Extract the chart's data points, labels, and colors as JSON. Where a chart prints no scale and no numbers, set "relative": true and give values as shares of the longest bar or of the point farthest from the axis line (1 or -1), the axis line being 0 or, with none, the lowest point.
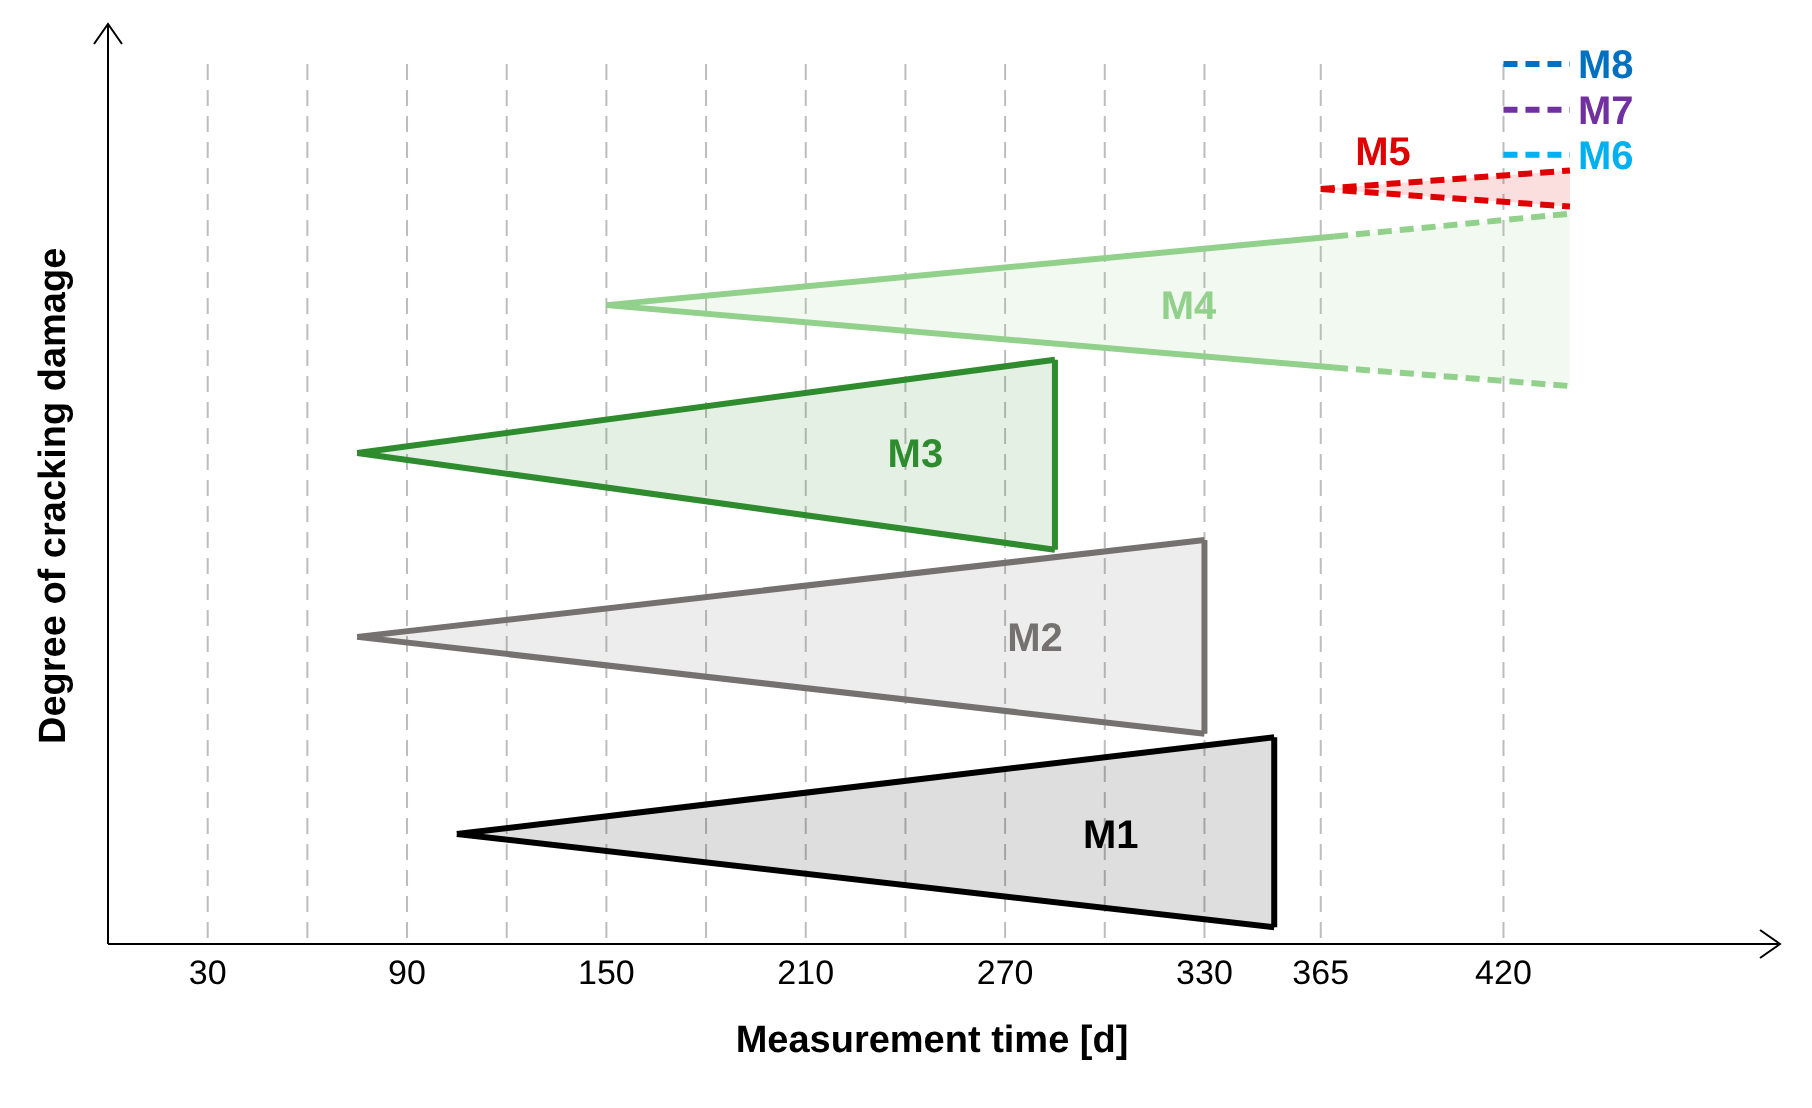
{
  "chart_data": {
    "type": "line",
    "relative": true,
    "xlabel": "Measurement time [d]",
    "ylabel": "Degree of cracking damage",
    "xlim": [
      0,
      496
    ],
    "xticks": [
      30,
      {
        "value": 60,
        "label": null
      },
      90,
      {
        "value": 120,
        "label": null
      },
      150,
      {
        "value": 180,
        "label": null
      },
      210,
      {
        "value": 240,
        "label": null
      },
      270,
      {
        "value": 300,
        "label": null
      },
      330,
      365,
      420
    ],
    "grid": "x",
    "legend": false,
    "series": [
      {
        "name": "M1",
        "color": "#000000",
        "line_style": "solid",
        "x": [
          105,
          351
        ],
        "values": [
          0.125,
          0.235
        ],
        "lower": [
          0.125,
          0.019
        ],
        "upper": [
          0.125,
          0.235
        ]
      },
      {
        "color": "#000000",
        "line_style": "solid",
        "x": [
          105,
          351
        ],
        "values": [
          0.125,
          0.019
        ]
      },
      {
        "color": "#000000",
        "line_style": "solid",
        "x": [
          351,
          351
        ],
        "values": [
          0.235,
          0.019
        ]
      },
      {
        "name": "M2",
        "color": "#767171",
        "line_style": "solid",
        "x": [
          75,
          330
        ],
        "values": [
          0.349,
          0.459
        ],
        "lower": [
          0.349,
          0.239
        ],
        "upper": [
          0.349,
          0.459
        ]
      },
      {
        "color": "#767171",
        "line_style": "solid",
        "x": [
          75,
          330
        ],
        "values": [
          0.349,
          0.239
        ]
      },
      {
        "color": "#767171",
        "line_style": "solid",
        "x": [
          330,
          330
        ],
        "values": [
          0.459,
          0.239
        ]
      },
      {
        "name": "M3",
        "color": "#2e8b2e",
        "line_style": "solid",
        "x": [
          75,
          285
        ],
        "values": [
          0.558,
          0.664
        ],
        "lower": [
          0.558,
          0.448
        ],
        "upper": [
          0.558,
          0.664
        ]
      },
      {
        "color": "#2e8b2e",
        "line_style": "solid",
        "x": [
          75,
          285
        ],
        "values": [
          0.558,
          0.448
        ]
      },
      {
        "color": "#2e8b2e",
        "line_style": "solid",
        "x": [
          285,
          285
        ],
        "values": [
          0.664,
          0.448
        ]
      },
      {
        "name": "M4",
        "color": "#92d18b",
        "line_style": "solid",
        "x": [
          150,
          369
        ],
        "values": [
          0.726,
          0.804
        ],
        "lower": [
          0.726,
          0.655
        ],
        "upper": [
          0.726,
          0.804
        ]
      },
      {
        "color": "#92d18b",
        "line_style": "solid",
        "x": [
          150,
          369
        ],
        "values": [
          0.726,
          0.655
        ]
      },
      {
        "color": "#92d18b",
        "line_style": "dashed",
        "x": [
          369,
          440
        ],
        "values": [
          0.804,
          0.83
        ],
        "lower": [
          0.655,
          0.634
        ],
        "upper": [
          0.804,
          0.83
        ]
      },
      {
        "color": "#92d18b",
        "line_style": "dashed",
        "x": [
          369,
          440
        ],
        "values": [
          0.655,
          0.634
        ]
      },
      {
        "name": "M5",
        "color": "#e00000",
        "line_style": "dashed",
        "x": [
          365,
          440
        ],
        "values": [
          0.858,
          0.879
        ],
        "lower": [
          0.858,
          0.838
        ],
        "upper": [
          0.858,
          0.879
        ]
      },
      {
        "color": "#e00000",
        "line_style": "dashed",
        "x": [
          365,
          440
        ],
        "values": [
          0.858,
          0.838
        ]
      },
      {
        "name": "M6",
        "color": "#00b0f0",
        "line_style": "dashed",
        "x": [
          420,
          440
        ],
        "values": [
          0.897,
          0.897
        ]
      },
      {
        "name": "M7",
        "color": "#7030a0",
        "line_style": "dashed",
        "x": [
          420,
          440
        ],
        "values": [
          0.948,
          0.948
        ]
      },
      {
        "name": "M8",
        "color": "#0070c0",
        "line_style": "dashed",
        "x": [
          420,
          440
        ],
        "values": [
          1,
          1
        ]
      }
    ]
  }
}
